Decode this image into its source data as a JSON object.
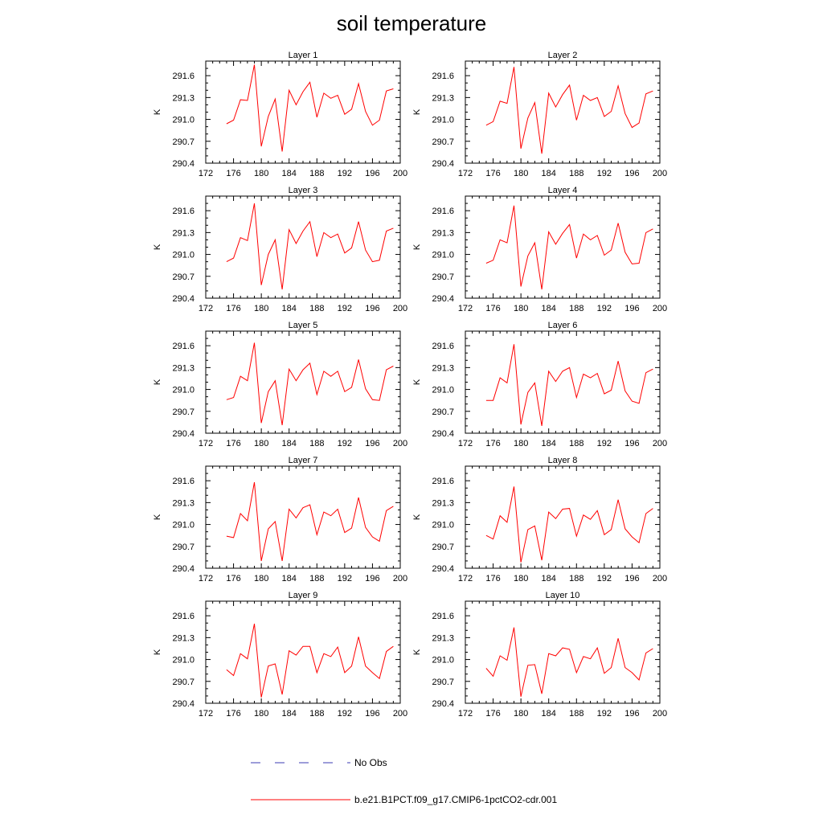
{
  "title": "soil temperature",
  "chart_data": {
    "type": "line",
    "ylabel": "K",
    "xlim": [
      172,
      200
    ],
    "ylim": [
      290.4,
      291.8
    ],
    "xticks": [
      172,
      176,
      180,
      184,
      188,
      192,
      196,
      200
    ],
    "yticks": [
      290.4,
      290.7,
      291.0,
      291.3,
      291.6
    ],
    "ytick_labels": [
      "290.4",
      "290.7",
      "291.0",
      "291.3",
      "291.6"
    ],
    "x": [
      175,
      176,
      177,
      178,
      179,
      180,
      181,
      182,
      183,
      184,
      185,
      186,
      187,
      188,
      189,
      190,
      191,
      192,
      193,
      194,
      195,
      196,
      197,
      198,
      199
    ],
    "line_color": "#ff0000",
    "obs_line_color": "#3b3bb3",
    "panels": [
      {
        "title": "Layer 1",
        "values": [
          290.94,
          290.99,
          291.27,
          291.26,
          291.75,
          290.63,
          291.04,
          291.28,
          290.56,
          291.4,
          291.2,
          291.38,
          291.51,
          291.03,
          291.36,
          291.29,
          291.33,
          291.07,
          291.14,
          291.49,
          291.11,
          290.92,
          290.99,
          291.39,
          291.42
        ]
      },
      {
        "title": "Layer 2",
        "values": [
          290.92,
          290.97,
          291.25,
          291.22,
          291.72,
          290.6,
          291.02,
          291.23,
          290.53,
          291.36,
          291.17,
          291.34,
          291.47,
          290.99,
          291.33,
          291.26,
          291.3,
          291.04,
          291.11,
          291.46,
          291.08,
          290.89,
          290.95,
          291.35,
          291.39
        ]
      },
      {
        "title": "Layer 3",
        "values": [
          290.9,
          290.95,
          291.23,
          291.19,
          291.7,
          290.58,
          291.0,
          291.2,
          290.52,
          291.34,
          291.15,
          291.32,
          291.45,
          290.97,
          291.3,
          291.23,
          291.28,
          291.02,
          291.09,
          291.45,
          291.06,
          290.9,
          290.92,
          291.32,
          291.36
        ]
      },
      {
        "title": "Layer 4",
        "values": [
          290.88,
          290.92,
          291.2,
          291.16,
          291.67,
          290.56,
          290.98,
          291.16,
          290.52,
          291.31,
          291.14,
          291.29,
          291.41,
          290.95,
          291.28,
          291.2,
          291.26,
          290.99,
          291.06,
          291.43,
          291.03,
          290.87,
          290.88,
          291.3,
          291.35
        ]
      },
      {
        "title": "Layer 5",
        "values": [
          290.86,
          290.89,
          291.18,
          291.12,
          291.64,
          290.54,
          290.97,
          291.12,
          290.51,
          291.28,
          291.12,
          291.27,
          291.36,
          290.93,
          291.25,
          291.18,
          291.25,
          290.97,
          291.03,
          291.41,
          291.01,
          290.86,
          290.85,
          291.27,
          291.32
        ]
      },
      {
        "title": "Layer 6",
        "values": [
          290.85,
          290.85,
          291.16,
          291.09,
          291.62,
          290.52,
          290.96,
          291.09,
          290.5,
          291.25,
          291.11,
          291.25,
          291.3,
          290.89,
          291.21,
          291.16,
          291.22,
          290.94,
          290.99,
          291.39,
          290.98,
          290.84,
          290.81,
          291.23,
          291.28
        ]
      },
      {
        "title": "Layer 7",
        "values": [
          290.84,
          290.82,
          291.15,
          291.05,
          291.58,
          290.5,
          290.94,
          291.04,
          290.5,
          291.21,
          291.09,
          291.23,
          291.27,
          290.86,
          291.17,
          291.12,
          291.21,
          290.89,
          290.95,
          291.37,
          290.96,
          290.83,
          290.77,
          291.19,
          291.25
        ]
      },
      {
        "title": "Layer 8",
        "values": [
          290.85,
          290.8,
          291.12,
          291.03,
          291.52,
          290.48,
          290.93,
          290.98,
          290.51,
          291.17,
          291.08,
          291.21,
          291.22,
          290.84,
          291.13,
          291.07,
          291.19,
          290.86,
          290.93,
          291.34,
          290.94,
          290.83,
          290.75,
          291.15,
          291.22
        ]
      },
      {
        "title": "Layer 9",
        "values": [
          290.86,
          290.78,
          291.08,
          291.01,
          291.49,
          290.48,
          290.91,
          290.94,
          290.52,
          291.12,
          291.06,
          291.18,
          291.18,
          290.82,
          291.08,
          291.04,
          291.17,
          290.82,
          290.91,
          291.31,
          290.91,
          290.82,
          290.74,
          291.11,
          291.18
        ]
      },
      {
        "title": "Layer 10",
        "values": [
          290.88,
          290.77,
          291.05,
          290.99,
          291.44,
          290.49,
          290.92,
          290.93,
          290.53,
          291.08,
          291.05,
          291.16,
          291.14,
          290.82,
          291.04,
          291.01,
          291.16,
          290.81,
          290.89,
          291.29,
          290.89,
          290.82,
          290.72,
          291.09,
          291.15
        ]
      }
    ],
    "legend": [
      {
        "label": "No Obs",
        "style": "dashed"
      },
      {
        "label": "b.e21.B1PCT.f09_g17.CMIP6-1pctCO2-cdr.001",
        "style": "solid"
      }
    ]
  }
}
